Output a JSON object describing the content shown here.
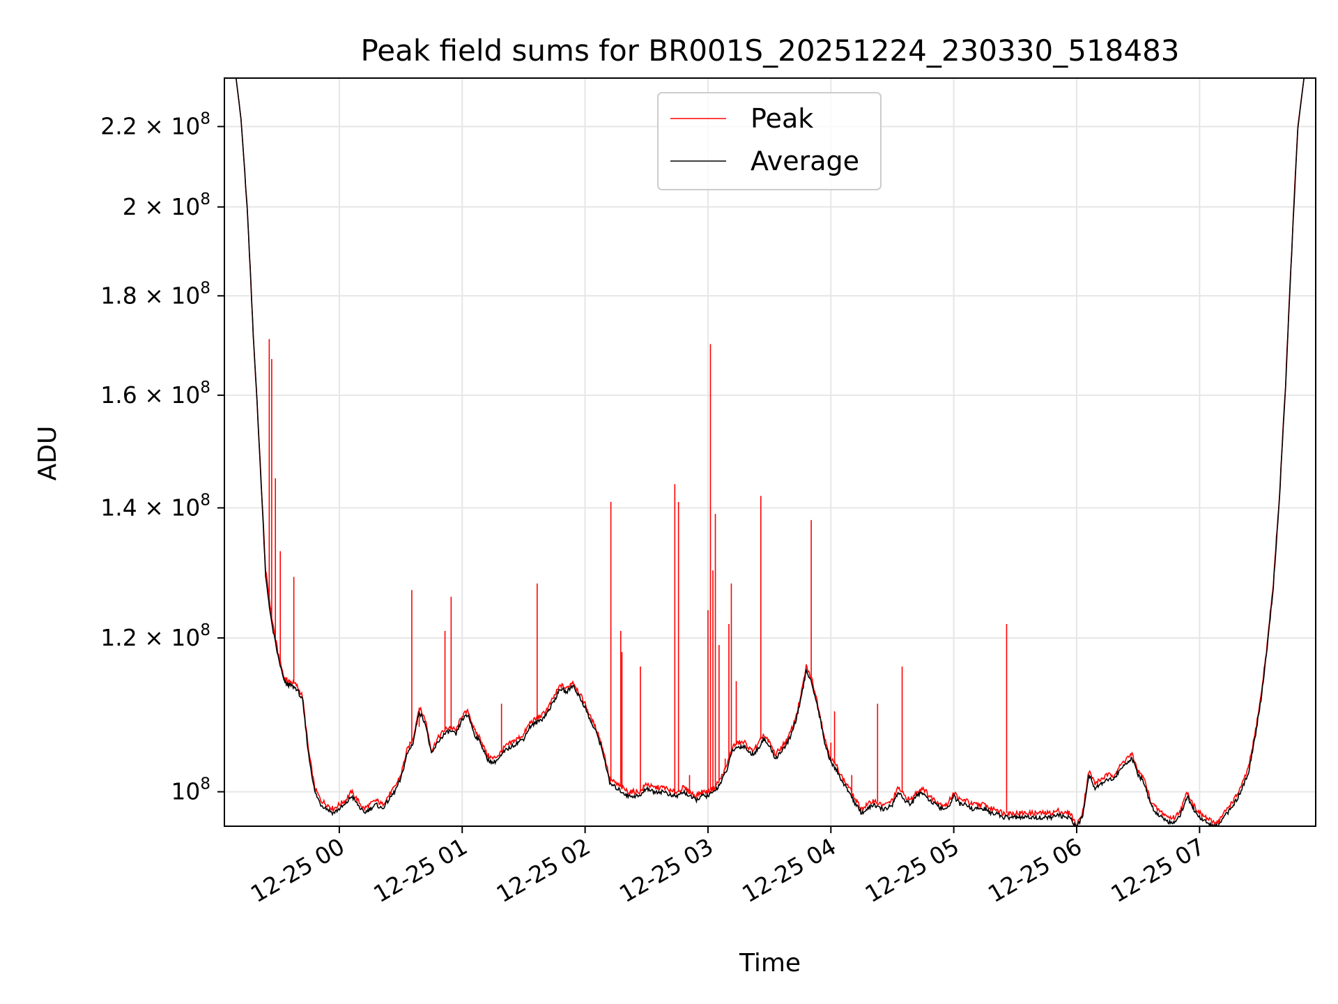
{
  "chart_data": {
    "type": "line",
    "title": "Peak field sums for BR001S_20251224_230330_518483",
    "xlabel": "Time",
    "ylabel": "ADU",
    "yscale": "log",
    "ylim": [
      96000000,
      233000000
    ],
    "xlim_hours": [
      -0.935,
      7.945
    ],
    "grid": true,
    "legend_position": "upper center",
    "colors": {
      "peak": "#ff0000",
      "average": "#000000",
      "grid": "#e6e6e6"
    },
    "x_ticks": [
      {
        "value": 0,
        "label": "12-25 00"
      },
      {
        "value": 1,
        "label": "12-25 01"
      },
      {
        "value": 2,
        "label": "12-25 02"
      },
      {
        "value": 3,
        "label": "12-25 03"
      },
      {
        "value": 4,
        "label": "12-25 04"
      },
      {
        "value": 5,
        "label": "12-25 05"
      },
      {
        "value": 6,
        "label": "12-25 06"
      },
      {
        "value": 7,
        "label": "12-25 07"
      }
    ],
    "y_ticks": [
      {
        "value": 100000000,
        "base": "10",
        "exp": "8"
      },
      {
        "value": 120000000,
        "base": "1.2 × 10",
        "exp": "8"
      },
      {
        "value": 140000000,
        "base": "1.4 × 10",
        "exp": "8"
      },
      {
        "value": 160000000,
        "base": "1.6 × 10",
        "exp": "8"
      },
      {
        "value": 180000000,
        "base": "1.8 × 10",
        "exp": "8"
      },
      {
        "value": 200000000,
        "base": "2 × 10",
        "exp": "8"
      },
      {
        "value": 220000000,
        "base": "2.2 × 10",
        "exp": "8"
      }
    ],
    "series": [
      {
        "name": "Peak",
        "x_hours": [
          -0.9,
          -0.84,
          -0.8,
          -0.75,
          -0.7,
          -0.65,
          -0.6,
          -0.55,
          -0.5,
          -0.45,
          -0.42,
          -0.4,
          -0.35,
          -0.3,
          -0.25,
          -0.2,
          -0.15,
          -0.1,
          -0.05,
          0,
          0.05,
          0.1,
          0.15,
          0.2,
          0.25,
          0.3,
          0.35,
          0.4,
          0.45,
          0.5,
          0.55,
          0.6,
          0.65,
          0.7,
          0.75,
          0.8,
          0.85,
          0.9,
          0.95,
          1.0,
          1.05,
          1.1,
          1.15,
          1.2,
          1.25,
          1.3,
          1.35,
          1.4,
          1.45,
          1.5,
          1.55,
          1.6,
          1.65,
          1.7,
          1.75,
          1.8,
          1.85,
          1.9,
          1.95,
          2.0,
          2.05,
          2.1,
          2.15,
          2.2,
          2.25,
          2.3,
          2.35,
          2.4,
          2.45,
          2.5,
          2.55,
          2.6,
          2.65,
          2.7,
          2.75,
          2.8,
          2.85,
          2.9,
          2.95,
          3.0,
          3.05,
          3.1,
          3.15,
          3.2,
          3.25,
          3.3,
          3.35,
          3.4,
          3.45,
          3.5,
          3.55,
          3.6,
          3.65,
          3.7,
          3.75,
          3.8,
          3.85,
          3.9,
          3.95,
          4.0,
          4.05,
          4.1,
          4.15,
          4.2,
          4.25,
          4.3,
          4.35,
          4.4,
          4.45,
          4.5,
          4.55,
          4.6,
          4.65,
          4.7,
          4.75,
          4.8,
          4.85,
          4.9,
          4.95,
          5.0,
          5.05,
          5.1,
          5.15,
          5.2,
          5.25,
          5.3,
          5.35,
          5.4,
          5.45,
          5.5,
          5.55,
          5.6,
          5.65,
          5.7,
          5.75,
          5.8,
          5.85,
          5.9,
          5.95,
          6.0,
          6.05,
          6.1,
          6.15,
          6.2,
          6.25,
          6.3,
          6.35,
          6.4,
          6.45,
          6.5,
          6.55,
          6.6,
          6.65,
          6.7,
          6.75,
          6.8,
          6.85,
          6.9,
          6.95,
          7.0,
          7.05,
          7.1,
          7.15,
          7.2,
          7.25,
          7.3,
          7.35,
          7.4,
          7.45,
          7.5,
          7.55,
          7.6,
          7.65,
          7.7,
          7.75,
          7.8,
          7.85,
          7.9
        ],
        "values": [
          233000000,
          233000000,
          222000000,
          200000000,
          172000000,
          150000000,
          130000000,
          123000000,
          118000000,
          114500000,
          114000000,
          114000000,
          113500000,
          112000000,
          105000000,
          100500000,
          99000000,
          98500000,
          98000000,
          98500000,
          99000000,
          100000000,
          99000000,
          98000000,
          98500000,
          99000000,
          98500000,
          99500000,
          100500000,
          102000000,
          105000000,
          106500000,
          110500000,
          109000000,
          105000000,
          106500000,
          107500000,
          108000000,
          107500000,
          109500000,
          110000000,
          107500000,
          106500000,
          104500000,
          104000000,
          104500000,
          105500000,
          106000000,
          106500000,
          107000000,
          108500000,
          109000000,
          109500000,
          110500000,
          112000000,
          113500000,
          113000000,
          114000000,
          112500000,
          111000000,
          109000000,
          107500000,
          105000000,
          101500000,
          101000000,
          100500000,
          100000000,
          100000000,
          100000000,
          101000000,
          100500000,
          100500000,
          100500000,
          100000000,
          100000000,
          100500000,
          100000000,
          99500000,
          100000000,
          100000000,
          100500000,
          101500000,
          103000000,
          105500000,
          106000000,
          106000000,
          105000000,
          105500000,
          107000000,
          106000000,
          104500000,
          105500000,
          106500000,
          108500000,
          111500000,
          116000000,
          114000000,
          110500000,
          106500000,
          104000000,
          103000000,
          101500000,
          100500000,
          99000000,
          98000000,
          98500000,
          99000000,
          98500000,
          98500000,
          99000000,
          100500000,
          99500000,
          99000000,
          100000000,
          100500000,
          99500000,
          99000000,
          98500000,
          98500000,
          100000000,
          99000000,
          99000000,
          98500000,
          98500000,
          98500000,
          98000000,
          98000000,
          97500000,
          97500000,
          97500000,
          97500000,
          97500000,
          97500000,
          97500000,
          97500000,
          97500000,
          97800000,
          97500000,
          97500000,
          96000000,
          97800000,
          102500000,
          101000000,
          101500000,
          102000000,
          102000000,
          103000000,
          104000000,
          104500000,
          102500000,
          101500000,
          99000000,
          98000000,
          97500000,
          97000000,
          97000000,
          98000000,
          100000000,
          98500000,
          97500000,
          97000000,
          96500000,
          96500000,
          97500000,
          98500000,
          99500000,
          101000000,
          103000000,
          107000000,
          112000000,
          119000000,
          128000000,
          142000000,
          162000000,
          190000000,
          220000000,
          233000000,
          233000000
        ],
        "spikes": [
          {
            "x_hours": -0.57,
            "value": 171000000
          },
          {
            "x_hours": -0.55,
            "value": 167000000
          },
          {
            "x_hours": -0.52,
            "value": 145000000
          },
          {
            "x_hours": -0.48,
            "value": 133000000
          },
          {
            "x_hours": -0.37,
            "value": 129000000
          },
          {
            "x_hours": 0.59,
            "value": 127000000
          },
          {
            "x_hours": 0.65,
            "value": 108000000
          },
          {
            "x_hours": 0.86,
            "value": 121000000
          },
          {
            "x_hours": 0.91,
            "value": 126000000
          },
          {
            "x_hours": 1.32,
            "value": 111000000
          },
          {
            "x_hours": 1.61,
            "value": 128000000
          },
          {
            "x_hours": 2.21,
            "value": 141000000
          },
          {
            "x_hours": 2.29,
            "value": 121000000
          },
          {
            "x_hours": 2.3,
            "value": 118000000
          },
          {
            "x_hours": 2.45,
            "value": 116000000
          },
          {
            "x_hours": 2.73,
            "value": 144000000
          },
          {
            "x_hours": 2.76,
            "value": 141000000
          },
          {
            "x_hours": 2.85,
            "value": 102000000
          },
          {
            "x_hours": 3.0,
            "value": 124000000
          },
          {
            "x_hours": 3.02,
            "value": 170000000
          },
          {
            "x_hours": 3.04,
            "value": 130000000
          },
          {
            "x_hours": 3.06,
            "value": 139000000
          },
          {
            "x_hours": 3.09,
            "value": 119000000
          },
          {
            "x_hours": 3.14,
            "value": 104000000
          },
          {
            "x_hours": 3.17,
            "value": 122000000
          },
          {
            "x_hours": 3.19,
            "value": 128000000
          },
          {
            "x_hours": 3.23,
            "value": 114000000
          },
          {
            "x_hours": 3.43,
            "value": 142000000
          },
          {
            "x_hours": 3.49,
            "value": 106000000
          },
          {
            "x_hours": 3.84,
            "value": 138000000
          },
          {
            "x_hours": 4.0,
            "value": 106000000
          },
          {
            "x_hours": 4.03,
            "value": 110000000
          },
          {
            "x_hours": 4.17,
            "value": 102000000
          },
          {
            "x_hours": 4.38,
            "value": 111000000
          },
          {
            "x_hours": 4.58,
            "value": 116000000
          },
          {
            "x_hours": 5.43,
            "value": 122000000
          }
        ]
      },
      {
        "name": "Average",
        "x_hours": [
          -0.9,
          -0.84,
          -0.8,
          -0.75,
          -0.7,
          -0.65,
          -0.6,
          -0.55,
          -0.5,
          -0.45,
          -0.42,
          -0.4,
          -0.35,
          -0.3,
          -0.25,
          -0.2,
          -0.15,
          -0.1,
          -0.05,
          0,
          0.05,
          0.1,
          0.15,
          0.2,
          0.25,
          0.3,
          0.35,
          0.4,
          0.45,
          0.5,
          0.55,
          0.6,
          0.65,
          0.7,
          0.75,
          0.8,
          0.85,
          0.9,
          0.95,
          1.0,
          1.05,
          1.1,
          1.15,
          1.2,
          1.25,
          1.3,
          1.35,
          1.4,
          1.45,
          1.5,
          1.55,
          1.6,
          1.65,
          1.7,
          1.75,
          1.8,
          1.85,
          1.9,
          1.95,
          2.0,
          2.05,
          2.1,
          2.15,
          2.2,
          2.25,
          2.3,
          2.35,
          2.4,
          2.45,
          2.5,
          2.55,
          2.6,
          2.65,
          2.7,
          2.75,
          2.8,
          2.85,
          2.9,
          2.95,
          3.0,
          3.05,
          3.1,
          3.15,
          3.2,
          3.25,
          3.3,
          3.35,
          3.4,
          3.45,
          3.5,
          3.55,
          3.6,
          3.65,
          3.7,
          3.75,
          3.8,
          3.85,
          3.9,
          3.95,
          4.0,
          4.05,
          4.1,
          4.15,
          4.2,
          4.25,
          4.3,
          4.35,
          4.4,
          4.45,
          4.5,
          4.55,
          4.6,
          4.65,
          4.7,
          4.75,
          4.8,
          4.85,
          4.9,
          4.95,
          5.0,
          5.05,
          5.1,
          5.15,
          5.2,
          5.25,
          5.3,
          5.35,
          5.4,
          5.45,
          5.5,
          5.55,
          5.6,
          5.65,
          5.7,
          5.75,
          5.8,
          5.85,
          5.9,
          5.95,
          6.0,
          6.05,
          6.1,
          6.15,
          6.2,
          6.25,
          6.3,
          6.35,
          6.4,
          6.45,
          6.5,
          6.55,
          6.6,
          6.65,
          6.7,
          6.75,
          6.8,
          6.85,
          6.9,
          6.95,
          7.0,
          7.05,
          7.1,
          7.15,
          7.2,
          7.25,
          7.3,
          7.35,
          7.4,
          7.45,
          7.5,
          7.55,
          7.6,
          7.65,
          7.7,
          7.75,
          7.8,
          7.85,
          7.9
        ],
        "values": [
          233000000,
          233000000,
          222000000,
          200000000,
          172000000,
          150000000,
          129000000,
          122000000,
          117500000,
          114000000,
          113500000,
          113500000,
          113000000,
          111500000,
          104500000,
          100000000,
          98500000,
          98000000,
          97500000,
          98000000,
          98500000,
          99500000,
          98500000,
          97500000,
          98000000,
          98500000,
          98000000,
          99000000,
          100000000,
          101500000,
          104500000,
          106000000,
          110000000,
          108500000,
          104500000,
          106000000,
          107000000,
          107500000,
          107000000,
          109000000,
          109500000,
          107000000,
          106000000,
          104000000,
          103500000,
          104000000,
          105000000,
          105500000,
          106000000,
          106500000,
          108000000,
          108500000,
          109000000,
          110000000,
          111500000,
          113000000,
          112500000,
          113500000,
          112000000,
          110500000,
          108500000,
          107000000,
          104500000,
          101000000,
          100500000,
          100000000,
          99500000,
          99500000,
          99500000,
          100500000,
          100000000,
          100000000,
          100000000,
          99500000,
          99500000,
          100000000,
          99500000,
          99000000,
          99500000,
          99500000,
          100000000,
          101000000,
          102500000,
          105000000,
          105500000,
          105500000,
          104500000,
          105000000,
          106500000,
          105500000,
          104000000,
          105000000,
          106000000,
          108000000,
          111000000,
          115500000,
          113500000,
          110000000,
          106000000,
          103500000,
          102500000,
          101000000,
          100000000,
          98500000,
          97500000,
          98000000,
          98500000,
          98000000,
          98000000,
          98500000,
          100000000,
          99000000,
          98500000,
          99500000,
          100000000,
          99000000,
          98500000,
          98000000,
          98000000,
          99500000,
          98500000,
          98500000,
          98000000,
          98000000,
          98000000,
          97500000,
          97500000,
          97000000,
          97000000,
          97000000,
          97000000,
          97000000,
          97000000,
          97000000,
          97000000,
          97000000,
          97300000,
          97000000,
          97000000,
          95800000,
          97300000,
          102000000,
          100500000,
          101000000,
          101500000,
          101500000,
          102500000,
          103500000,
          104000000,
          102000000,
          101000000,
          98500000,
          97500000,
          97000000,
          96500000,
          96500000,
          97500000,
          99500000,
          98000000,
          97000000,
          96500000,
          96000000,
          96000000,
          97000000,
          98000000,
          99000000,
          100500000,
          102500000,
          106500000,
          111500000,
          118500000,
          127500000,
          141500000,
          161500000,
          189500000,
          219500000,
          233000000,
          233000000
        ]
      }
    ]
  }
}
